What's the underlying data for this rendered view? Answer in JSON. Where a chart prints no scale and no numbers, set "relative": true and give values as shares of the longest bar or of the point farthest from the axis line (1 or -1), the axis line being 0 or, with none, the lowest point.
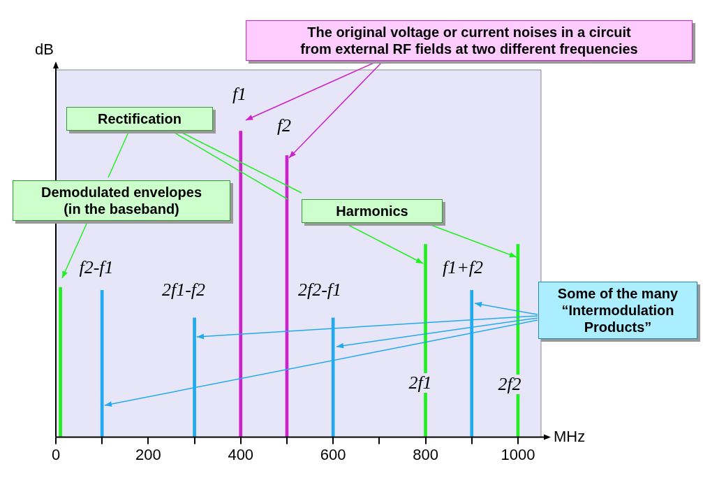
{
  "chart_data": {
    "type": "bar",
    "relative": true,
    "ylabel": "dB",
    "xlabel": "MHz",
    "x": [
      10,
      100,
      300,
      400,
      500,
      600,
      800,
      900,
      1000
    ],
    "values": [
      0.49,
      0.48,
      0.39,
      1,
      0.92,
      0.39,
      0.63,
      0.48,
      0.63
    ],
    "colors": [
      "#22ee22",
      "#22aaee",
      "#22aaee",
      "#cc22cc",
      "#cc22cc",
      "#22aaee",
      "#22ee22",
      "#22aaee",
      "#22ee22"
    ],
    "xlim": [
      0,
      1050
    ],
    "xticks": [
      0,
      {
        "value": 100,
        "label": null
      },
      200,
      {
        "value": 300,
        "label": null
      },
      400,
      {
        "value": 500,
        "label": null
      },
      600,
      {
        "value": 700,
        "label": null
      },
      800,
      {
        "value": 900,
        "label": null
      },
      1000
    ],
    "grid": false,
    "legend": false,
    "annotations": [
      "The original voltage or current noises in a circuit\nfrom external RF fields at two different frequencies",
      "Rectification",
      "Demodulated envelopes\n(in the baseband)",
      "Harmonics",
      "Some of the many\n“Intermodulation\nProducts”",
      "f1",
      "f2",
      "f2-f1",
      "2f1-f2",
      "2f2-f1",
      "f1+f2",
      "2f1",
      "2f2"
    ]
  }
}
